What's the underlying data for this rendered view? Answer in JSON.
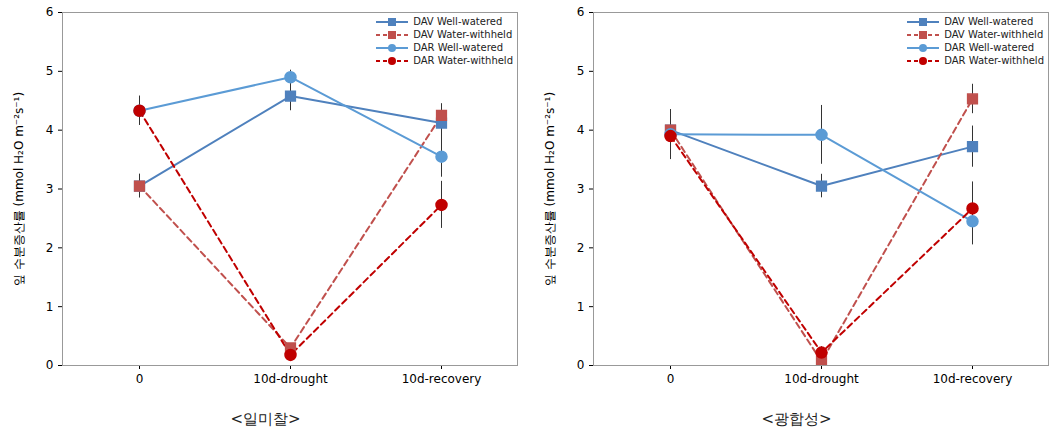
{
  "chart_data": [
    {
      "type": "line",
      "title": "<일미찰>",
      "y_label": "잎 수분증산률 (mmol H₂O m⁻²s⁻¹)",
      "categories": [
        "0",
        "10d-drought",
        "10d-recovery"
      ],
      "ylim": [
        0,
        6
      ],
      "yticks": [
        0,
        1,
        2,
        3,
        4,
        5,
        6
      ],
      "grid": false,
      "legend": "top-right",
      "series": [
        {
          "name": "DAV Well-watered",
          "color": "#4f81bd",
          "marker": "square",
          "line_style": "solid",
          "values": [
            3.05,
            4.58,
            4.12
          ],
          "errors": [
            0.2,
            0.25,
            0.25
          ]
        },
        {
          "name": "DAV Water-withheld",
          "color": "#c0504d",
          "marker": "square",
          "line_style": "dashed",
          "values": [
            3.05,
            0.3,
            4.25
          ],
          "errors": [
            0.2,
            0.05,
            0.2
          ]
        },
        {
          "name": "DAR Well-watered",
          "color": "#5b9bd5",
          "marker": "circle",
          "line_style": "solid",
          "values": [
            4.33,
            4.9,
            3.55
          ],
          "errors": [
            0.2,
            0.12,
            0.35
          ]
        },
        {
          "name": "DAR Water-withheld",
          "color": "#c00000",
          "marker": "circle",
          "line_style": "dashed",
          "values": [
            4.33,
            0.18,
            2.73
          ],
          "errors": [
            0.25,
            0.05,
            0.4
          ]
        }
      ]
    },
    {
      "type": "line",
      "title": "<광합성>",
      "y_label": "잎 수분증산률 (mmol H₂O m⁻²s⁻¹)",
      "categories": [
        "0",
        "10d-drought",
        "10d-recovery"
      ],
      "ylim": [
        0,
        6
      ],
      "yticks": [
        0,
        1,
        2,
        3,
        4,
        5,
        6
      ],
      "grid": false,
      "legend": "top-right",
      "series": [
        {
          "name": "DAV Well-watered",
          "color": "#4f81bd",
          "marker": "square",
          "line_style": "solid",
          "values": [
            4.0,
            3.05,
            3.72
          ],
          "errors": [
            0.35,
            0.2,
            0.35
          ]
        },
        {
          "name": "DAV Water-withheld",
          "color": "#c0504d",
          "marker": "square",
          "line_style": "dashed",
          "values": [
            4.0,
            0.07,
            4.53
          ],
          "errors": [
            0.35,
            0.05,
            0.25
          ]
        },
        {
          "name": "DAR Well-watered",
          "color": "#5b9bd5",
          "marker": "circle",
          "line_style": "solid",
          "values": [
            3.93,
            3.92,
            2.45
          ],
          "errors": [
            0.4,
            0.5,
            0.4
          ]
        },
        {
          "name": "DAR Water-withheld",
          "color": "#c00000",
          "marker": "circle",
          "line_style": "dashed",
          "values": [
            3.9,
            0.22,
            2.67
          ],
          "errors": [
            0.4,
            0.1,
            0.45
          ]
        }
      ]
    }
  ]
}
